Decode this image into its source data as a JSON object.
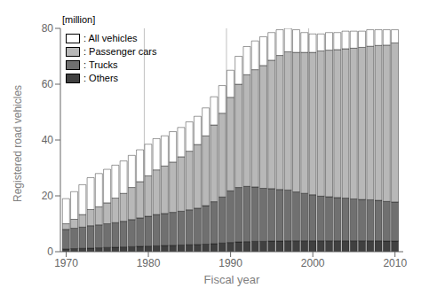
{
  "chart_data": {
    "type": "bar",
    "stacked": true,
    "xlabel": "Fiscal year",
    "ylabel": "Registered road vehicles",
    "annotation": "[million]",
    "x": [
      1970,
      1971,
      1972,
      1973,
      1974,
      1975,
      1976,
      1977,
      1978,
      1979,
      1980,
      1981,
      1982,
      1983,
      1984,
      1985,
      1986,
      1987,
      1988,
      1989,
      1990,
      1991,
      1992,
      1993,
      1994,
      1995,
      1996,
      1997,
      1998,
      1999,
      2000,
      2001,
      2002,
      2003,
      2004,
      2005,
      2006,
      2007,
      2008,
      2009,
      2010
    ],
    "series": [
      {
        "name": ": Others",
        "color": "#404040",
        "values": [
          1.0,
          1.1,
          1.2,
          1.3,
          1.4,
          1.5,
          1.6,
          1.7,
          1.8,
          1.9,
          2.0,
          2.1,
          2.2,
          2.3,
          2.4,
          2.5,
          2.6,
          2.7,
          2.9,
          3.1,
          3.3,
          3.5,
          3.6,
          3.7,
          3.7,
          3.8,
          3.8,
          3.9,
          3.9,
          3.9,
          3.9,
          3.9,
          3.9,
          3.9,
          3.9,
          3.9,
          3.9,
          3.9,
          3.9,
          3.8,
          3.8
        ]
      },
      {
        "name": ": Trucks",
        "color": "#707070",
        "values": [
          7.0,
          7.3,
          7.6,
          8.0,
          8.2,
          8.5,
          8.8,
          9.2,
          9.7,
          10.2,
          10.7,
          11.2,
          11.5,
          11.8,
          12.1,
          12.5,
          13.0,
          13.8,
          15.0,
          16.5,
          18.5,
          19.5,
          19.8,
          19.5,
          19.0,
          18.8,
          18.5,
          18.2,
          17.5,
          17.0,
          16.5,
          16.0,
          15.8,
          15.5,
          15.3,
          15.0,
          14.8,
          14.7,
          14.5,
          14.2,
          14.0
        ]
      },
      {
        "name": ": Passenger cars",
        "color": "#b8b8b8",
        "values": [
          2.0,
          3.2,
          4.5,
          5.8,
          6.5,
          7.5,
          8.8,
          10.0,
          11.5,
          13.0,
          14.5,
          16.0,
          17.0,
          18.0,
          19.5,
          21.0,
          22.8,
          25.0,
          27.5,
          30.0,
          33.5,
          37.0,
          40.0,
          42.0,
          44.0,
          46.0,
          48.0,
          49.5,
          50.0,
          50.5,
          51.0,
          52.0,
          52.5,
          53.0,
          53.5,
          54.0,
          54.5,
          55.0,
          55.5,
          56.0,
          57.0
        ]
      },
      {
        "name": ": All vehicles",
        "color": "#ffffff",
        "values": [
          9.0,
          9.9,
          10.7,
          11.4,
          11.9,
          12.0,
          11.8,
          11.6,
          11.5,
          11.4,
          11.3,
          11.2,
          10.8,
          10.9,
          10.5,
          10.5,
          10.1,
          10.0,
          10.1,
          9.9,
          9.7,
          10.0,
          10.1,
          10.3,
          10.3,
          9.9,
          9.2,
          8.4,
          8.1,
          7.1,
          6.6,
          6.1,
          6.3,
          6.1,
          6.3,
          6.1,
          5.8,
          5.9,
          5.6,
          5.5,
          4.7
        ]
      }
    ],
    "xlim": [
      1969.3,
      2011.0
    ],
    "xticks": [
      1970,
      1980,
      1990,
      2000,
      2010
    ],
    "ylim": [
      0,
      80
    ],
    "yticks": [
      0,
      20,
      40,
      60,
      80
    ],
    "vertical_lines": [
      1979.5,
      1989.5,
      1999.5
    ],
    "legend": "upper left",
    "grid": false
  }
}
